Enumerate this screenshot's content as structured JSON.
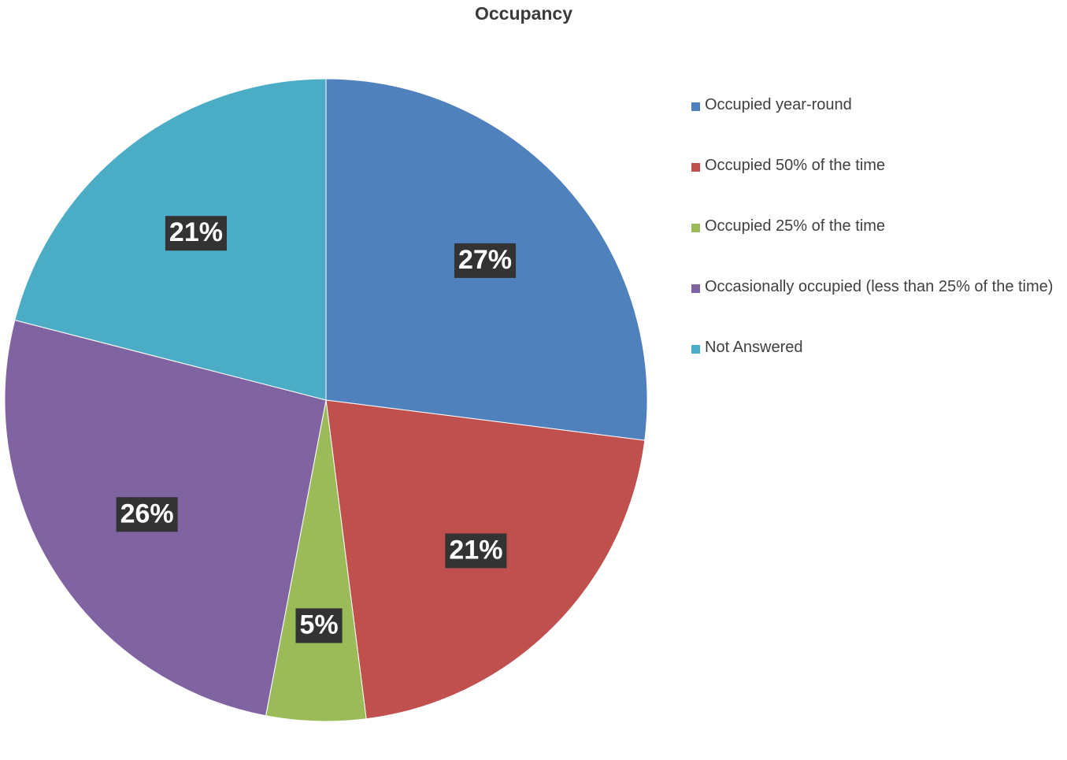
{
  "chart_data": {
    "type": "pie",
    "title": "Occupancy",
    "slices": [
      {
        "name": "Occupied year-round",
        "value": 27,
        "label": "27%",
        "color": "#4f81bd"
      },
      {
        "name": "Occupied 50% of the time",
        "value": 21,
        "label": "21%",
        "color": "#c0504d"
      },
      {
        "name": "Occupied 25% of the time",
        "value": 5,
        "label": "5%",
        "color": "#9bbb59"
      },
      {
        "name": "Occasionally occupied (less than 25% of the time)",
        "value": 26,
        "label": "26%",
        "color": "#8064a2"
      },
      {
        "name": "Not Answered",
        "value": 21,
        "label": "21%",
        "color": "#4bacc6"
      }
    ],
    "start_angle": "12 o'clock",
    "direction": "clockwise",
    "legend_position": "right",
    "data_label_background": "#333333"
  }
}
